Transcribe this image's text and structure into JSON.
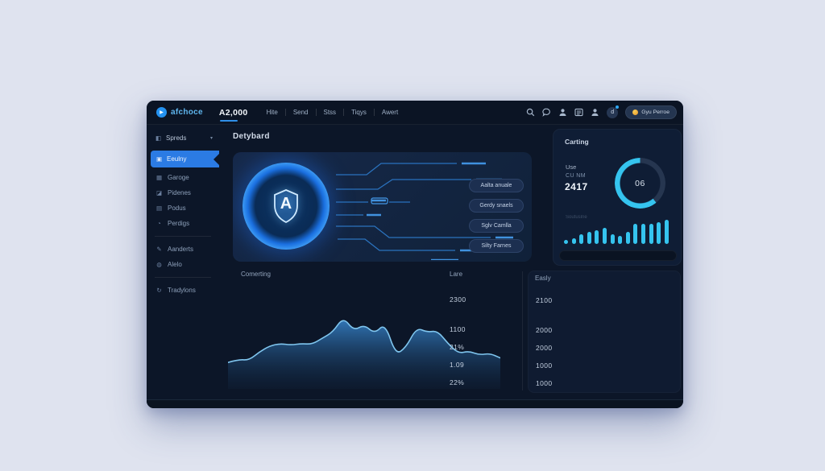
{
  "topbar": {
    "logo": "afchoce",
    "balance": "A2,000",
    "nav": [
      {
        "label": "Hite"
      },
      {
        "label": "Send"
      },
      {
        "label": "Stss"
      },
      {
        "label": "Tiqys"
      },
      {
        "label": "Awert"
      }
    ],
    "avatar_label": "d",
    "cta_label": "Gyu Perroe"
  },
  "sidebar": {
    "group": {
      "label": "Spreds",
      "icon": "◧",
      "chevron": "▾"
    },
    "selected": {
      "label": "Eeulny",
      "icon": "▣"
    },
    "items": [
      {
        "label": "Garoge",
        "icon": "▦"
      },
      {
        "label": "Pidenes",
        "icon": "◪"
      },
      {
        "label": "Podus",
        "icon": "▤"
      },
      {
        "label": "Perdigs",
        "icon": "◔"
      },
      {
        "label": "Aanderts",
        "icon": "✎"
      },
      {
        "label": "Alelo",
        "icon": "◍"
      },
      {
        "label": "Tradylons",
        "icon": "↻"
      }
    ]
  },
  "main": {
    "title": "Detybard",
    "hero": {
      "shield_letter": "A",
      "actions": [
        {
          "label": "Aalta anuale"
        },
        {
          "label": "Gerdy snaels"
        },
        {
          "label": "Sglv Camlla"
        },
        {
          "label": "Silty Farnes"
        }
      ]
    }
  },
  "carting": {
    "title": "Carting",
    "stat_label_1": "Use",
    "stat_label_2": "CU NM",
    "stat_value": "2417",
    "gauge_center": "06",
    "bars_caption": "Soutuslne"
  },
  "bottom": {
    "chart_label": "Comerting",
    "columns": [
      {
        "header": "Lare",
        "values": [
          "2300",
          "1100",
          "21%",
          "1.09",
          "22%"
        ]
      },
      {
        "header": "Easly",
        "values": [
          "2100",
          "2000",
          "2000",
          "1000",
          "1000"
        ]
      }
    ]
  },
  "colors": {
    "window_bg": "#0c1628",
    "panel_bg": "#13223c",
    "accent_blue": "#2b7be4",
    "accent_cyan": "#35c4ef",
    "gauge_track": "#263650",
    "coin_yellow": "#eda73c"
  },
  "chart_data": [
    {
      "type": "pie",
      "title": "Carting gauge (donut)",
      "center_label": "06",
      "segments": [
        {
          "name": "filled",
          "value": 61
        },
        {
          "name": "remaining",
          "value": 39
        }
      ],
      "colors": {
        "filled": "#35c4ef",
        "remaining": "#263650"
      },
      "legend_position": "none"
    },
    {
      "type": "bar",
      "title": "Carting mini bar chart",
      "values": [
        2,
        3,
        5,
        6,
        7,
        8,
        5,
        4,
        6,
        10,
        10,
        10,
        11,
        12
      ],
      "ylim": [
        0,
        12
      ],
      "color": "#35c4ef",
      "grid": false
    },
    {
      "type": "area",
      "title": "Comerting",
      "values": [
        20,
        24,
        23,
        34,
        42,
        45,
        43,
        45,
        44,
        52,
        60,
        80,
        62,
        70,
        58,
        72,
        30,
        40,
        66,
        60,
        62,
        45,
        32,
        35,
        30,
        32,
        26
      ],
      "ylim": [
        0,
        100
      ],
      "color": "#4a9fdc",
      "grid": false
    },
    {
      "type": "table",
      "columns": [
        "Lare",
        "Easly"
      ],
      "rows": [
        [
          "2300",
          "2100"
        ],
        [
          "1100",
          "2000"
        ],
        [
          "21%",
          "2000"
        ],
        [
          "1.09",
          "1000"
        ],
        [
          "22%",
          "1000"
        ]
      ]
    }
  ]
}
